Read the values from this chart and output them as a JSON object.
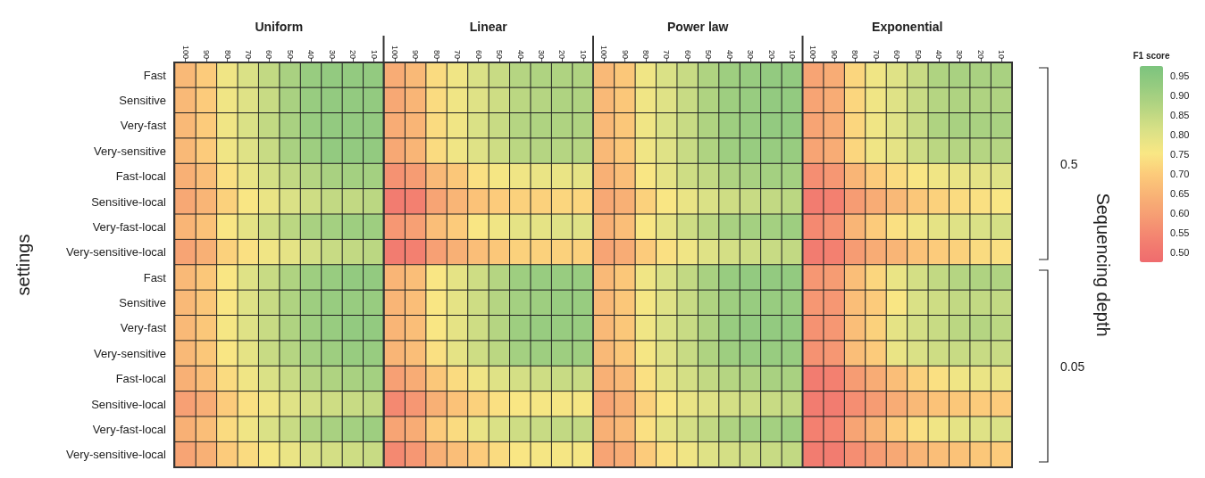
{
  "chart_data": {
    "type": "heatmap",
    "ylabel": "settings",
    "clabel": "F1 score",
    "categories": [
      "100",
      "90",
      "80",
      "70",
      "60",
      "50",
      "40",
      "30",
      "20",
      "10",
      "100",
      "90",
      "80",
      "70",
      "60",
      "50",
      "40",
      "30",
      "20",
      "10",
      "100",
      "90",
      "80",
      "70",
      "60",
      "50",
      "40",
      "30",
      "20",
      "10",
      "100",
      "90",
      "80",
      "70",
      "60",
      "50",
      "40",
      "30",
      "20",
      "10"
    ],
    "y_categories": [
      "Fast",
      "Sensitive",
      "Very-fast",
      "Very-sensitive",
      "Fast-local",
      "Sensitive-local",
      "Very-fast-local",
      "Very-sensitive-local",
      "Fast",
      "Sensitive",
      "Very-fast",
      "Very-sensitive",
      "Fast-local",
      "Sensitive-local",
      "Very-fast-local",
      "Very-sensitive-local"
    ],
    "annotations": [
      "Uniform",
      "Linear",
      "Power law",
      "Exponential",
      "0.5",
      "0.05",
      "Sequencing depth"
    ],
    "clim": [
      0.475,
      0.975
    ],
    "cticks": [
      {
        "value": 0.5,
        "label": "0.50"
      },
      0.55,
      {
        "value": 0.6,
        "label": "0.60"
      },
      0.65,
      {
        "value": 0.7,
        "label": "0.70"
      },
      0.75,
      {
        "value": 0.8,
        "label": "0.80"
      },
      0.85,
      {
        "value": 0.9,
        "label": "0.90"
      },
      0.95
    ],
    "cells": [
      [
        0.66,
        0.7,
        0.77,
        0.81,
        0.85,
        0.89,
        0.92,
        0.93,
        0.93,
        0.93,
        0.63,
        0.66,
        0.73,
        0.77,
        0.81,
        0.84,
        0.87,
        0.88,
        0.88,
        0.88,
        0.66,
        0.69,
        0.77,
        0.81,
        0.84,
        0.88,
        0.91,
        0.92,
        0.93,
        0.93,
        0.61,
        0.63,
        0.72,
        0.77,
        0.8,
        0.84,
        0.88,
        0.89,
        0.89,
        0.89
      ],
      [
        0.66,
        0.7,
        0.77,
        0.8,
        0.84,
        0.89,
        0.92,
        0.93,
        0.93,
        0.93,
        0.62,
        0.65,
        0.73,
        0.77,
        0.8,
        0.83,
        0.86,
        0.87,
        0.88,
        0.88,
        0.66,
        0.69,
        0.77,
        0.8,
        0.84,
        0.88,
        0.91,
        0.92,
        0.93,
        0.93,
        0.61,
        0.63,
        0.72,
        0.77,
        0.8,
        0.84,
        0.87,
        0.88,
        0.88,
        0.88
      ],
      [
        0.66,
        0.7,
        0.77,
        0.81,
        0.85,
        0.89,
        0.92,
        0.93,
        0.93,
        0.93,
        0.63,
        0.65,
        0.73,
        0.77,
        0.81,
        0.84,
        0.87,
        0.88,
        0.88,
        0.88,
        0.66,
        0.69,
        0.77,
        0.81,
        0.84,
        0.88,
        0.91,
        0.92,
        0.93,
        0.93,
        0.61,
        0.63,
        0.72,
        0.77,
        0.8,
        0.84,
        0.88,
        0.89,
        0.89,
        0.89
      ],
      [
        0.66,
        0.7,
        0.77,
        0.8,
        0.84,
        0.89,
        0.91,
        0.93,
        0.93,
        0.93,
        0.62,
        0.65,
        0.73,
        0.77,
        0.8,
        0.83,
        0.86,
        0.87,
        0.87,
        0.87,
        0.66,
        0.69,
        0.77,
        0.8,
        0.84,
        0.88,
        0.91,
        0.92,
        0.92,
        0.92,
        0.61,
        0.63,
        0.72,
        0.77,
        0.79,
        0.83,
        0.86,
        0.87,
        0.87,
        0.87
      ],
      [
        0.64,
        0.67,
        0.74,
        0.78,
        0.82,
        0.85,
        0.87,
        0.89,
        0.9,
        0.9,
        0.57,
        0.59,
        0.66,
        0.69,
        0.74,
        0.76,
        0.77,
        0.78,
        0.78,
        0.79,
        0.64,
        0.67,
        0.75,
        0.79,
        0.83,
        0.85,
        0.88,
        0.89,
        0.9,
        0.9,
        0.56,
        0.58,
        0.65,
        0.7,
        0.73,
        0.75,
        0.77,
        0.78,
        0.79,
        0.8
      ],
      [
        0.62,
        0.65,
        0.71,
        0.75,
        0.78,
        0.81,
        0.83,
        0.85,
        0.85,
        0.86,
        0.52,
        0.53,
        0.61,
        0.65,
        0.68,
        0.7,
        0.71,
        0.71,
        0.72,
        0.72,
        0.62,
        0.64,
        0.71,
        0.75,
        0.78,
        0.81,
        0.83,
        0.84,
        0.85,
        0.86,
        0.52,
        0.53,
        0.59,
        0.63,
        0.66,
        0.69,
        0.71,
        0.73,
        0.74,
        0.75
      ],
      [
        0.65,
        0.68,
        0.75,
        0.79,
        0.83,
        0.86,
        0.89,
        0.9,
        0.91,
        0.91,
        0.58,
        0.6,
        0.67,
        0.7,
        0.75,
        0.77,
        0.79,
        0.79,
        0.8,
        0.8,
        0.64,
        0.67,
        0.75,
        0.79,
        0.83,
        0.86,
        0.89,
        0.9,
        0.9,
        0.91,
        0.55,
        0.57,
        0.65,
        0.7,
        0.74,
        0.77,
        0.79,
        0.8,
        0.81,
        0.82
      ],
      [
        0.61,
        0.64,
        0.71,
        0.74,
        0.77,
        0.79,
        0.82,
        0.84,
        0.85,
        0.86,
        0.52,
        0.53,
        0.6,
        0.64,
        0.67,
        0.69,
        0.71,
        0.71,
        0.71,
        0.71,
        0.61,
        0.63,
        0.7,
        0.74,
        0.77,
        0.8,
        0.82,
        0.83,
        0.84,
        0.85,
        0.52,
        0.53,
        0.59,
        0.63,
        0.65,
        0.68,
        0.7,
        0.71,
        0.73,
        0.74
      ],
      [
        0.66,
        0.69,
        0.75,
        0.8,
        0.84,
        0.88,
        0.91,
        0.92,
        0.93,
        0.93,
        0.65,
        0.67,
        0.75,
        0.79,
        0.83,
        0.87,
        0.91,
        0.92,
        0.92,
        0.92,
        0.66,
        0.69,
        0.77,
        0.81,
        0.85,
        0.89,
        0.92,
        0.93,
        0.93,
        0.93,
        0.58,
        0.59,
        0.67,
        0.72,
        0.78,
        0.82,
        0.85,
        0.87,
        0.88,
        0.88
      ],
      [
        0.66,
        0.69,
        0.75,
        0.8,
        0.84,
        0.88,
        0.91,
        0.92,
        0.92,
        0.92,
        0.65,
        0.67,
        0.75,
        0.79,
        0.83,
        0.87,
        0.9,
        0.91,
        0.92,
        0.92,
        0.66,
        0.69,
        0.76,
        0.8,
        0.84,
        0.88,
        0.91,
        0.92,
        0.92,
        0.92,
        0.58,
        0.58,
        0.67,
        0.7,
        0.75,
        0.81,
        0.83,
        0.85,
        0.85,
        0.85
      ],
      [
        0.66,
        0.69,
        0.76,
        0.8,
        0.84,
        0.88,
        0.91,
        0.92,
        0.93,
        0.93,
        0.65,
        0.67,
        0.75,
        0.79,
        0.83,
        0.87,
        0.91,
        0.92,
        0.92,
        0.92,
        0.66,
        0.69,
        0.77,
        0.81,
        0.84,
        0.88,
        0.92,
        0.93,
        0.93,
        0.93,
        0.57,
        0.58,
        0.67,
        0.71,
        0.79,
        0.82,
        0.84,
        0.86,
        0.87,
        0.86
      ],
      [
        0.66,
        0.69,
        0.75,
        0.79,
        0.84,
        0.87,
        0.9,
        0.91,
        0.92,
        0.92,
        0.65,
        0.67,
        0.74,
        0.79,
        0.83,
        0.86,
        0.9,
        0.91,
        0.91,
        0.91,
        0.66,
        0.69,
        0.76,
        0.8,
        0.84,
        0.88,
        0.91,
        0.92,
        0.92,
        0.92,
        0.57,
        0.58,
        0.67,
        0.7,
        0.78,
        0.81,
        0.83,
        0.84,
        0.84,
        0.84
      ],
      [
        0.64,
        0.67,
        0.73,
        0.77,
        0.81,
        0.84,
        0.87,
        0.88,
        0.89,
        0.9,
        0.6,
        0.63,
        0.69,
        0.73,
        0.77,
        0.8,
        0.82,
        0.83,
        0.84,
        0.84,
        0.64,
        0.66,
        0.74,
        0.79,
        0.82,
        0.85,
        0.87,
        0.88,
        0.89,
        0.89,
        0.52,
        0.53,
        0.59,
        0.63,
        0.67,
        0.71,
        0.74,
        0.77,
        0.78,
        0.78
      ],
      [
        0.6,
        0.63,
        0.7,
        0.74,
        0.77,
        0.8,
        0.82,
        0.83,
        0.84,
        0.85,
        0.55,
        0.58,
        0.64,
        0.68,
        0.71,
        0.74,
        0.75,
        0.76,
        0.76,
        0.76,
        0.61,
        0.64,
        0.71,
        0.75,
        0.78,
        0.8,
        0.82,
        0.83,
        0.84,
        0.85,
        0.52,
        0.52,
        0.56,
        0.59,
        0.63,
        0.66,
        0.68,
        0.69,
        0.7,
        0.7
      ],
      [
        0.64,
        0.67,
        0.73,
        0.77,
        0.81,
        0.84,
        0.88,
        0.89,
        0.9,
        0.91,
        0.61,
        0.63,
        0.7,
        0.73,
        0.78,
        0.81,
        0.83,
        0.84,
        0.85,
        0.85,
        0.64,
        0.66,
        0.74,
        0.79,
        0.82,
        0.85,
        0.88,
        0.9,
        0.9,
        0.91,
        0.53,
        0.54,
        0.61,
        0.65,
        0.7,
        0.74,
        0.77,
        0.79,
        0.8,
        0.81
      ],
      [
        0.61,
        0.64,
        0.7,
        0.73,
        0.76,
        0.78,
        0.81,
        0.82,
        0.83,
        0.84,
        0.55,
        0.58,
        0.64,
        0.67,
        0.7,
        0.73,
        0.75,
        0.76,
        0.76,
        0.76,
        0.61,
        0.63,
        0.7,
        0.74,
        0.77,
        0.8,
        0.82,
        0.83,
        0.84,
        0.85,
        0.52,
        0.52,
        0.56,
        0.59,
        0.62,
        0.65,
        0.67,
        0.68,
        0.69,
        0.7
      ]
    ]
  }
}
